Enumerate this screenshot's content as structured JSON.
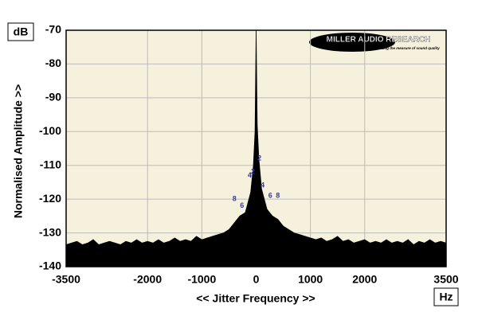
{
  "chart_data": {
    "type": "area",
    "unit_y": "dB",
    "unit_x": "Hz",
    "y_label": "Normalised Amplitude >>",
    "x_label": "<< Jitter Frequency >>",
    "logo": "MILLER AUDIO RESEARCH",
    "logo_tagline": "Getting the measure of sound quality",
    "xlim": [
      -3500,
      3500
    ],
    "xticks": [
      -3500,
      -2000,
      -1000,
      0,
      1000,
      2000,
      3500
    ],
    "ylim": [
      -140,
      -70
    ],
    "yticks": [
      -140,
      -130,
      -120,
      -110,
      -100,
      -90,
      -80,
      -70
    ],
    "grid": true,
    "series": [
      {
        "color": "#000000",
        "x": [
          -3500,
          -3400,
          -3300,
          -3200,
          -3100,
          -3000,
          -2900,
          -2800,
          -2700,
          -2600,
          -2500,
          -2400,
          -2300,
          -2200,
          -2100,
          -2000,
          -1900,
          -1800,
          -1700,
          -1600,
          -1500,
          -1400,
          -1300,
          -1200,
          -1100,
          -1000,
          -900,
          -800,
          -700,
          -600,
          -500,
          -400,
          -300,
          -200,
          -100,
          -50,
          -20,
          0,
          20,
          50,
          100,
          200,
          300,
          400,
          500,
          600,
          700,
          800,
          900,
          1000,
          1100,
          1200,
          1300,
          1400,
          1500,
          1600,
          1700,
          1800,
          1900,
          2000,
          2100,
          2200,
          2300,
          2400,
          2500,
          2600,
          2700,
          2800,
          2900,
          3000,
          3100,
          3200,
          3300,
          3400,
          3500
        ],
        "values": [
          -133.5,
          -133,
          -132.5,
          -133.5,
          -133,
          -132,
          -133.5,
          -133,
          -132.5,
          -133,
          -133.5,
          -132.5,
          -133,
          -132,
          -133,
          -132.5,
          -133,
          -132,
          -133,
          -132.5,
          -131.5,
          -132.5,
          -132,
          -132.5,
          -131,
          -132,
          -131.5,
          -131,
          -130.5,
          -130,
          -129,
          -127,
          -125,
          -124,
          -118,
          -110,
          -100,
          -70,
          -98,
          -108,
          -117,
          -123,
          -125,
          -126,
          -128,
          -129,
          -130,
          -130.5,
          -131,
          -131.5,
          -132,
          -131.5,
          -132.5,
          -132,
          -131,
          -132.5,
          -132,
          -133,
          -132.5,
          -132,
          -133,
          -132.5,
          -133,
          -132,
          -133,
          -132.5,
          -133,
          -132,
          -133.5,
          -132.5,
          -133,
          -132,
          -133,
          -132.5,
          -133
        ]
      }
    ],
    "annotations": [
      {
        "text": "2",
        "x": -60,
        "y": -112
      },
      {
        "text": "2",
        "x": 60,
        "y": -108
      },
      {
        "text": "4",
        "x": -120,
        "y": -113
      },
      {
        "text": "4",
        "x": 120,
        "y": -116
      },
      {
        "text": "6",
        "x": -260,
        "y": -122
      },
      {
        "text": "6",
        "x": 260,
        "y": -119
      },
      {
        "text": "8",
        "x": -400,
        "y": -120
      },
      {
        "text": "8",
        "x": 400,
        "y": -119
      }
    ]
  }
}
